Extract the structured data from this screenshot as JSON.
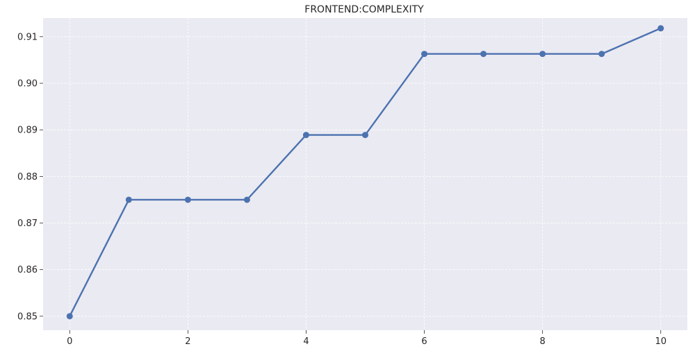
{
  "chart_data": {
    "type": "line",
    "title": "FRONTEND:COMPLEXITY",
    "xlabel": "",
    "ylabel": "",
    "x": [
      0,
      1,
      2,
      3,
      4,
      5,
      6,
      7,
      8,
      9,
      10
    ],
    "series": [
      {
        "values": [
          0.85,
          0.875,
          0.875,
          0.875,
          0.8889,
          0.8889,
          0.9063,
          0.9063,
          0.9063,
          0.9063,
          0.9118
        ]
      }
    ],
    "xlim": [
      -0.45,
      10.45
    ],
    "ylim": [
      0.847,
      0.914
    ],
    "xticks": [
      0,
      2,
      4,
      6,
      8,
      10
    ],
    "xtick_labels": [
      "0",
      "2",
      "4",
      "6",
      "8",
      "10"
    ],
    "yticks": [
      0.85,
      0.86,
      0.87,
      0.88,
      0.89,
      0.9,
      0.91
    ],
    "ytick_labels": [
      "0.85",
      "0.86",
      "0.87",
      "0.88",
      "0.89",
      "0.90",
      "0.91"
    ],
    "grid": true,
    "colors": {
      "background": "#eaeaf2",
      "grid": "#ffffff",
      "line": "#4c72b0"
    }
  }
}
